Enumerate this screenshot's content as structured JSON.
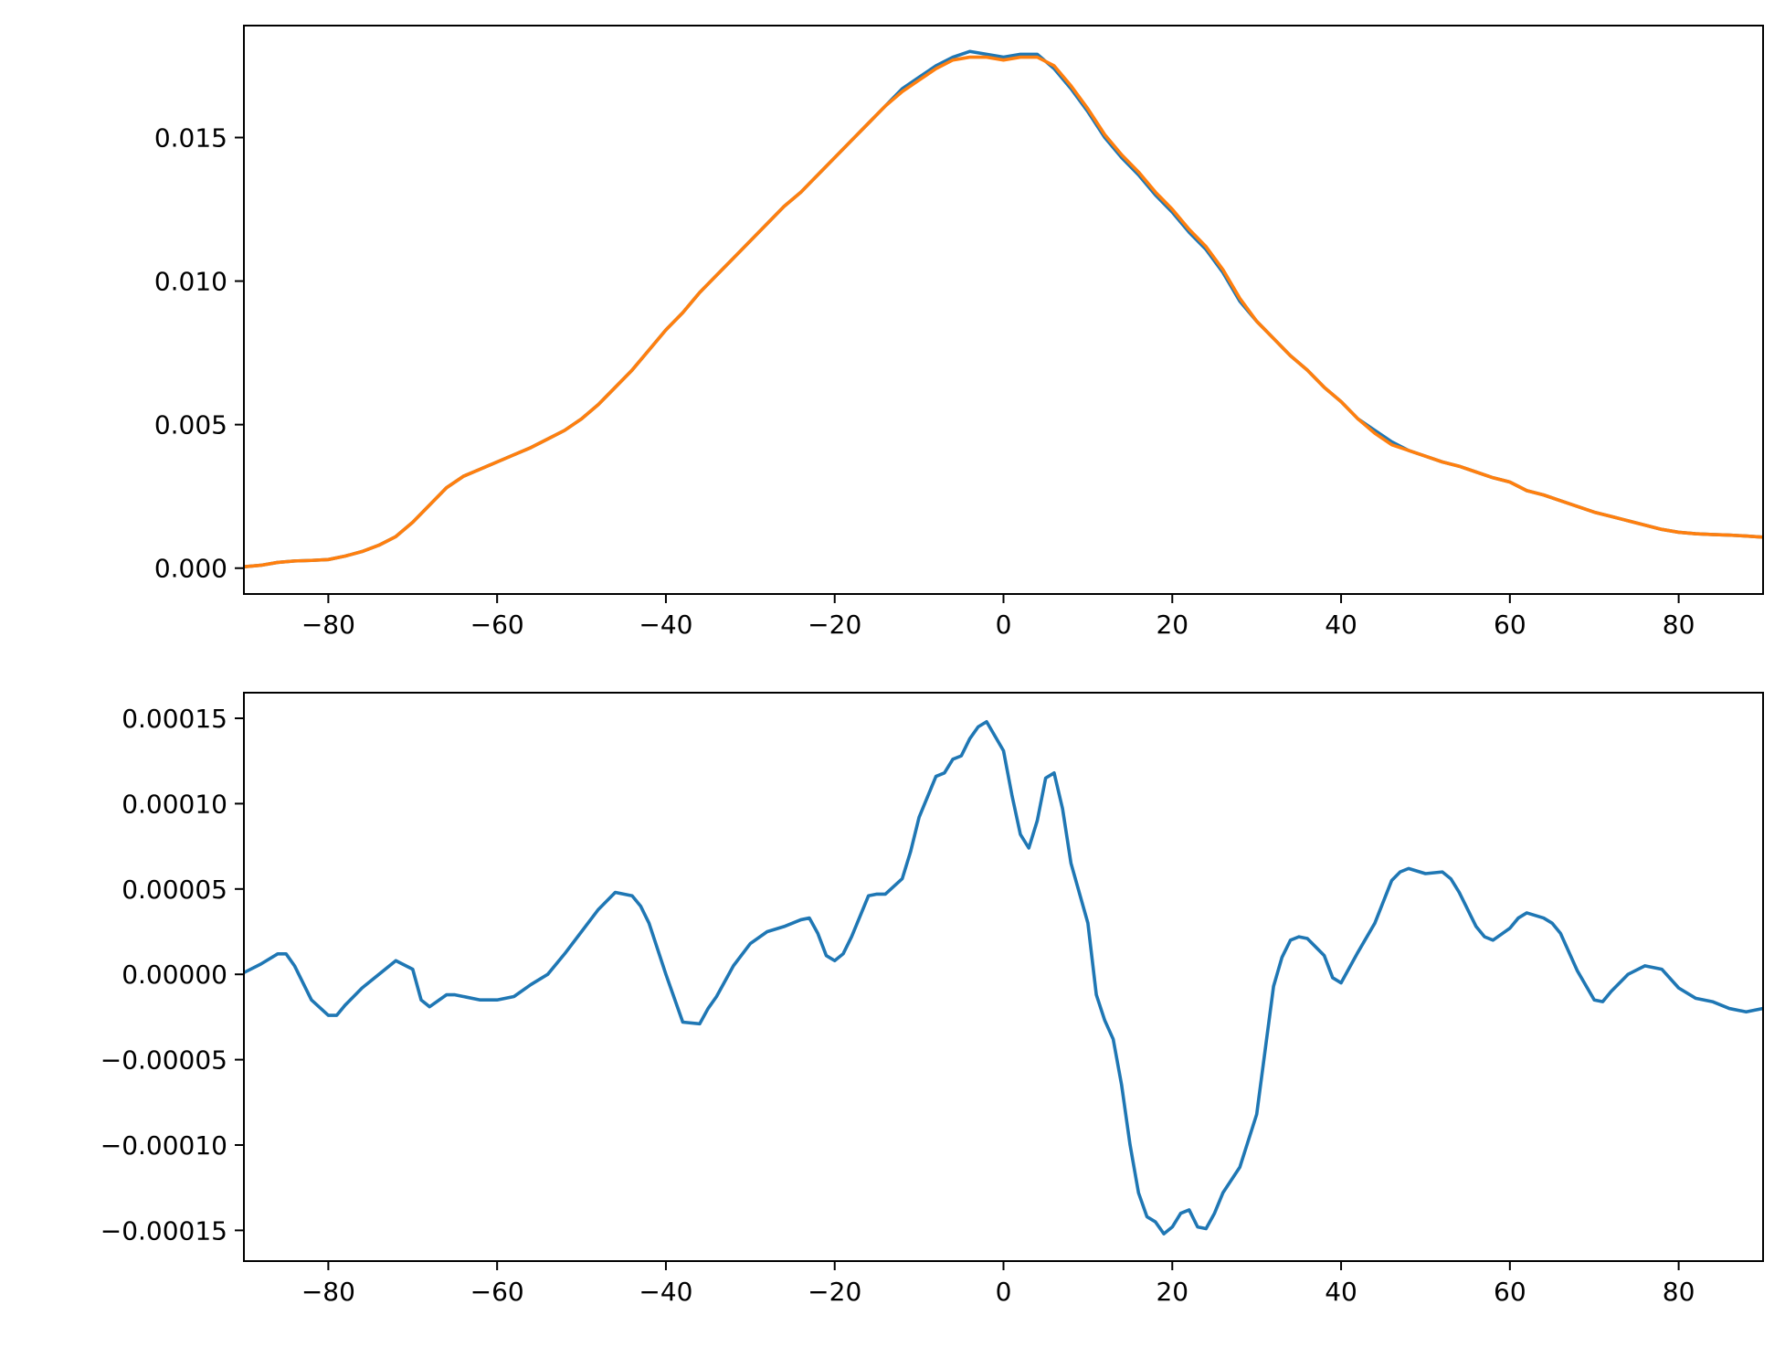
{
  "chart_data": [
    {
      "type": "line",
      "xlim": [
        -90,
        90
      ],
      "ylim": [
        -0.0009,
        0.0189
      ],
      "x_ticks": [
        -80,
        -60,
        -40,
        -20,
        0,
        20,
        40,
        60,
        80
      ],
      "x_tick_labels": [
        "−80",
        "−60",
        "−40",
        "−20",
        "0",
        "20",
        "40",
        "60",
        "80"
      ],
      "y_ticks": [
        0.0,
        0.005,
        0.01,
        0.015
      ],
      "y_tick_labels": [
        "0.000",
        "0.005",
        "0.010",
        "0.015"
      ],
      "grid": false,
      "series": [
        {
          "color": "#1f77b4",
          "x": [
            -90,
            -88,
            -86,
            -84,
            -82,
            -80,
            -78,
            -76,
            -74,
            -72,
            -70,
            -68,
            -66,
            -64,
            -62,
            -60,
            -58,
            -56,
            -54,
            -52,
            -50,
            -48,
            -46,
            -44,
            -42,
            -40,
            -38,
            -36,
            -34,
            -32,
            -30,
            -28,
            -26,
            -24,
            -22,
            -20,
            -18,
            -16,
            -14,
            -12,
            -10,
            -8,
            -6,
            -4,
            -2,
            0,
            2,
            4,
            6,
            8,
            10,
            12,
            14,
            16,
            18,
            20,
            22,
            24,
            26,
            28,
            30,
            32,
            34,
            36,
            38,
            40,
            42,
            44,
            46,
            48,
            50,
            52,
            54,
            56,
            58,
            60,
            62,
            64,
            66,
            68,
            70,
            72,
            74,
            76,
            78,
            80,
            82,
            84,
            86,
            88,
            90
          ],
          "y": [
            5e-05,
            0.0001,
            0.0002,
            0.00025,
            0.00027,
            0.0003,
            0.00042,
            0.00058,
            0.0008,
            0.0011,
            0.0016,
            0.0022,
            0.0028,
            0.0032,
            0.00345,
            0.0037,
            0.00395,
            0.0042,
            0.0045,
            0.0048,
            0.0052,
            0.0057,
            0.0063,
            0.0069,
            0.0076,
            0.0083,
            0.0089,
            0.0096,
            0.0102,
            0.0108,
            0.0114,
            0.012,
            0.0126,
            0.0131,
            0.0137,
            0.0143,
            0.0149,
            0.0155,
            0.0161,
            0.0167,
            0.0171,
            0.0175,
            0.0178,
            0.018,
            0.0179,
            0.0178,
            0.0179,
            0.0179,
            0.0174,
            0.0167,
            0.0159,
            0.015,
            0.0143,
            0.0137,
            0.013,
            0.0124,
            0.0117,
            0.0111,
            0.0103,
            0.0093,
            0.0086,
            0.008,
            0.0074,
            0.0069,
            0.0063,
            0.0058,
            0.0052,
            0.0048,
            0.0044,
            0.0041,
            0.0039,
            0.0037,
            0.00355,
            0.00335,
            0.00315,
            0.003,
            0.0027,
            0.00255,
            0.00235,
            0.00215,
            0.00195,
            0.0018,
            0.00165,
            0.0015,
            0.00135,
            0.00125,
            0.0012,
            0.00117,
            0.00115,
            0.00112,
            0.00108
          ]
        },
        {
          "color": "#ff7f0e",
          "x": [
            -90,
            -88,
            -86,
            -84,
            -82,
            -80,
            -78,
            -76,
            -74,
            -72,
            -70,
            -68,
            -66,
            -64,
            -62,
            -60,
            -58,
            -56,
            -54,
            -52,
            -50,
            -48,
            -46,
            -44,
            -42,
            -40,
            -38,
            -36,
            -34,
            -32,
            -30,
            -28,
            -26,
            -24,
            -22,
            -20,
            -18,
            -16,
            -14,
            -12,
            -10,
            -8,
            -6,
            -4,
            -2,
            0,
            2,
            4,
            6,
            8,
            10,
            12,
            14,
            16,
            18,
            20,
            22,
            24,
            26,
            28,
            30,
            32,
            34,
            36,
            38,
            40,
            42,
            44,
            46,
            48,
            50,
            52,
            54,
            56,
            58,
            60,
            62,
            64,
            66,
            68,
            70,
            72,
            74,
            76,
            78,
            80,
            82,
            84,
            86,
            88,
            90
          ],
          "y": [
            5e-05,
            0.0001,
            0.0002,
            0.00025,
            0.00027,
            0.0003,
            0.00042,
            0.00058,
            0.0008,
            0.0011,
            0.0016,
            0.0022,
            0.0028,
            0.0032,
            0.00345,
            0.0037,
            0.00395,
            0.0042,
            0.0045,
            0.0048,
            0.0052,
            0.0057,
            0.0063,
            0.0069,
            0.0076,
            0.0083,
            0.0089,
            0.0096,
            0.0102,
            0.0108,
            0.0114,
            0.012,
            0.0126,
            0.0131,
            0.0137,
            0.0143,
            0.0149,
            0.0155,
            0.0161,
            0.0166,
            0.017,
            0.0174,
            0.0177,
            0.0178,
            0.0178,
            0.0177,
            0.0178,
            0.0178,
            0.0175,
            0.0168,
            0.016,
            0.0151,
            0.0144,
            0.0138,
            0.0131,
            0.0125,
            0.0118,
            0.0112,
            0.0104,
            0.0094,
            0.0086,
            0.008,
            0.0074,
            0.0069,
            0.0063,
            0.0058,
            0.0052,
            0.0047,
            0.0043,
            0.0041,
            0.0039,
            0.0037,
            0.00355,
            0.00335,
            0.00315,
            0.003,
            0.0027,
            0.00255,
            0.00235,
            0.00215,
            0.00195,
            0.0018,
            0.00165,
            0.0015,
            0.00135,
            0.00125,
            0.0012,
            0.00117,
            0.00115,
            0.00112,
            0.00108
          ]
        }
      ]
    },
    {
      "type": "line",
      "xlim": [
        -90,
        90
      ],
      "ylim": [
        -0.000168,
        0.000165
      ],
      "x_ticks": [
        -80,
        -60,
        -40,
        -20,
        0,
        20,
        40,
        60,
        80
      ],
      "x_tick_labels": [
        "−80",
        "−60",
        "−40",
        "−20",
        "0",
        "20",
        "40",
        "60",
        "80"
      ],
      "y_ticks": [
        0.00015,
        0.0001,
        5e-05,
        0.0,
        -5e-05,
        -0.0001,
        -0.00015
      ],
      "y_tick_labels": [
        "0.00015",
        "0.00010",
        "0.00005",
        "0.00000",
        "−0.00005",
        "−0.00010",
        "−0.00015"
      ],
      "grid": false,
      "series": [
        {
          "color": "#1f77b4",
          "x": [
            -90,
            -88,
            -86,
            -85,
            -84,
            -82,
            -80,
            -79,
            -78,
            -76,
            -74,
            -72,
            -70,
            -69,
            -68,
            -66,
            -65,
            -64,
            -62,
            -60,
            -58,
            -56,
            -54,
            -52,
            -50,
            -48,
            -46,
            -44,
            -43,
            -42,
            -40,
            -38,
            -36,
            -35,
            -34,
            -32,
            -30,
            -28,
            -26,
            -24,
            -23,
            -22,
            -21,
            -20,
            -19,
            -18,
            -16,
            -15,
            -14,
            -12,
            -11,
            -10,
            -8,
            -7,
            -6,
            -5,
            -4,
            -3,
            -2,
            0,
            1,
            2,
            3,
            4,
            5,
            6,
            7,
            8,
            10,
            11,
            12,
            13,
            14,
            15,
            16,
            17,
            18,
            19,
            20,
            21,
            22,
            23,
            24,
            25,
            26,
            28,
            30,
            32,
            33,
            34,
            35,
            36,
            37,
            38,
            39,
            40,
            42,
            44,
            46,
            47,
            48,
            50,
            52,
            53,
            54,
            56,
            57,
            58,
            60,
            61,
            62,
            64,
            65,
            66,
            68,
            70,
            71,
            72,
            74,
            76,
            77,
            78,
            80,
            82,
            84,
            86,
            88,
            89,
            90
          ],
          "y": [
            1e-06,
            6e-06,
            1.2e-05,
            1.2e-05,
            5e-06,
            -1.5e-05,
            -2.4e-05,
            -2.4e-05,
            -1.8e-05,
            -8e-06,
            0.0,
            8e-06,
            3e-06,
            -1.5e-05,
            -1.9e-05,
            -1.2e-05,
            -1.2e-05,
            -1.3e-05,
            -1.5e-05,
            -1.5e-05,
            -1.3e-05,
            -6e-06,
            0.0,
            1.2e-05,
            2.5e-05,
            3.8e-05,
            4.8e-05,
            4.6e-05,
            4e-05,
            3e-05,
            0.0,
            -2.8e-05,
            -2.9e-05,
            -2e-05,
            -1.3e-05,
            5e-06,
            1.8e-05,
            2.5e-05,
            2.8e-05,
            3.2e-05,
            3.3e-05,
            2.4e-05,
            1.1e-05,
            8e-06,
            1.2e-05,
            2.2e-05,
            4.6e-05,
            4.7e-05,
            4.7e-05,
            5.6e-05,
            7.2e-05,
            9.2e-05,
            0.000116,
            0.000118,
            0.000126,
            0.000128,
            0.000138,
            0.000145,
            0.000148,
            0.000131,
            0.000105,
            8.2e-05,
            7.4e-05,
            9e-05,
            0.000115,
            0.000118,
            9.7e-05,
            6.5e-05,
            3e-05,
            -1.2e-05,
            -2.7e-05,
            -3.8e-05,
            -6.5e-05,
            -0.0001,
            -0.000128,
            -0.000142,
            -0.000145,
            -0.000152,
            -0.000148,
            -0.00014,
            -0.000138,
            -0.000148,
            -0.000149,
            -0.00014,
            -0.000128,
            -0.000113,
            -8.2e-05,
            -7e-06,
            1e-05,
            2e-05,
            2.2e-05,
            2.1e-05,
            1.6e-05,
            1.1e-05,
            -2e-06,
            -5e-06,
            1.3e-05,
            3e-05,
            5.5e-05,
            6e-05,
            6.2e-05,
            5.9e-05,
            6e-05,
            5.6e-05,
            4.8e-05,
            2.8e-05,
            2.2e-05,
            2e-05,
            2.7e-05,
            3.3e-05,
            3.6e-05,
            3.3e-05,
            3e-05,
            2.4e-05,
            2e-06,
            -1.5e-05,
            -1.6e-05,
            -1e-05,
            0.0,
            5e-06,
            4e-06,
            3e-06,
            -8e-06,
            -1.4e-05,
            -1.6e-05,
            -2e-05,
            -2.2e-05,
            -2.1e-05,
            -2e-05
          ]
        }
      ]
    }
  ]
}
